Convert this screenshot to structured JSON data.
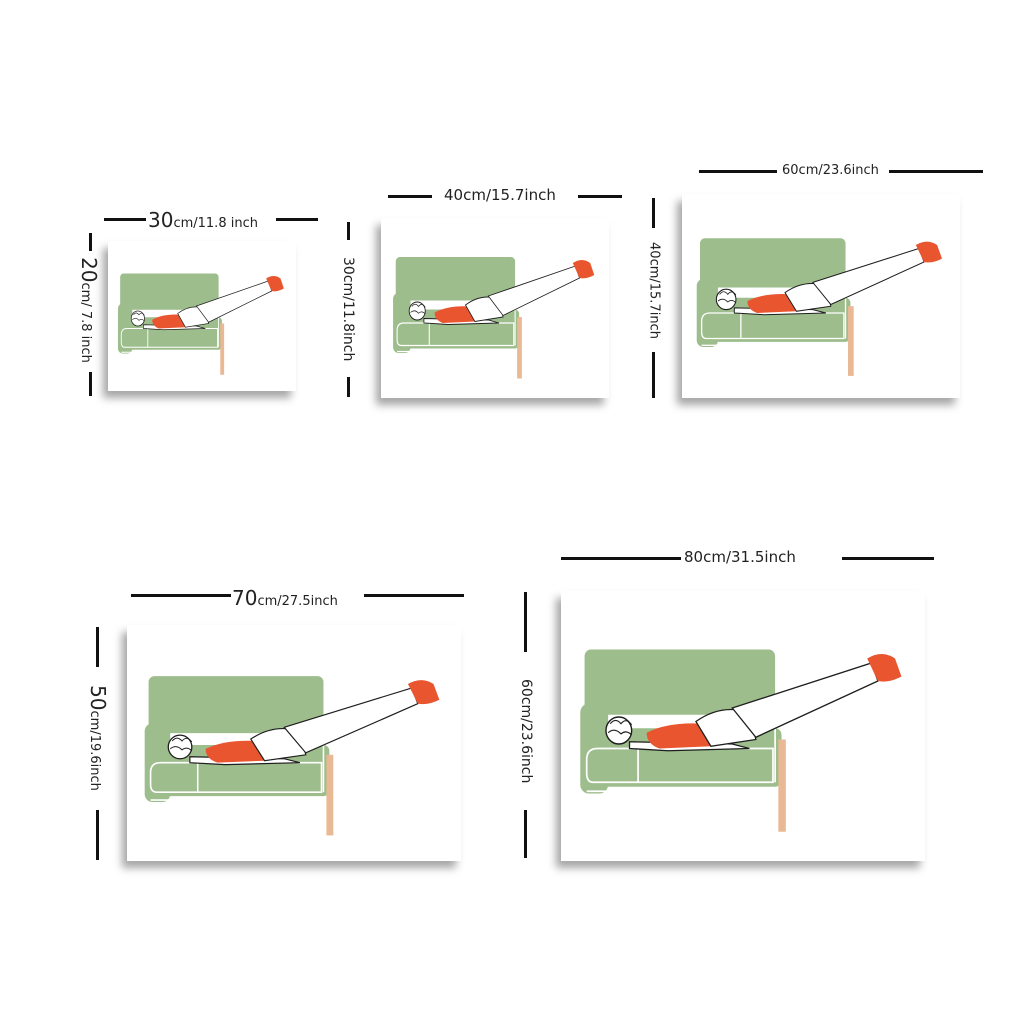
{
  "colors": {
    "sofa": "#9ebd8c",
    "sofa_line": "#ffffff",
    "leg": "#e9b894",
    "shirt": "#e8552e",
    "outline": "#1e1e1e",
    "background": "#ffffff"
  },
  "artwork": {
    "subject": "sofa-illustration"
  },
  "sizes": [
    {
      "width_num": "30",
      "width_unit": "cm/11.8 inch",
      "height_num": "20",
      "height_unit": "cm/ 7.8 inch"
    },
    {
      "width_text": "40cm/15.7inch",
      "height_text": "30cm/11.8inch"
    },
    {
      "width_text": "60cm/23.6inch",
      "height_text": "40cm/15.7inch"
    },
    {
      "width_num": "70",
      "width_unit": "cm/27.5inch",
      "height_num": "50",
      "height_unit": "cm/19.6inch"
    },
    {
      "width_text": "80cm/31.5inch",
      "height_text": "60cm/23.6inch"
    }
  ]
}
